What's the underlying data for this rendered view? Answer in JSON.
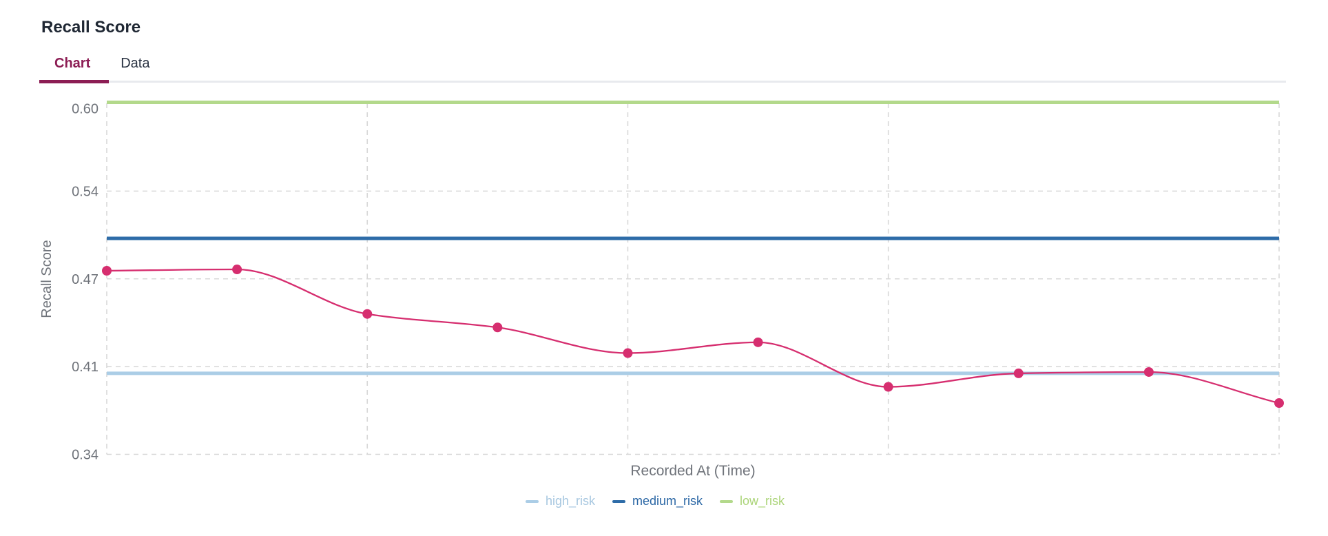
{
  "title": "Recall Score",
  "tabs": [
    {
      "label": "Chart",
      "active": true
    },
    {
      "label": "Data",
      "active": false
    }
  ],
  "colors": {
    "active_tab": "#8c1d54",
    "series_line": "#d62e6f",
    "high_risk_line": "#abcde6",
    "high_risk_text": "#a7c7e0",
    "medium_risk_line": "#2e6ca8",
    "medium_risk_text": "#2b67a5",
    "low_risk_line": "#b3d98b",
    "low_risk_text": "#abd478",
    "gridline": "#d8d8d8",
    "tick_text": "#6f737a",
    "title_text": "#1f2733"
  },
  "chart_data": {
    "type": "line",
    "title": "Recall Score",
    "xlabel": "Recorded At (Time)",
    "ylabel": "Recall Score",
    "series": [
      {
        "name": "recall_score",
        "color": "#d62e6f",
        "values": [
          0.476,
          0.477,
          0.444,
          0.434,
          0.415,
          0.423,
          0.39,
          0.4,
          0.401,
          0.378
        ]
      }
    ],
    "thresholds": [
      {
        "name": "high_risk",
        "value": 0.4,
        "color": "#abcde6",
        "text_color": "#a7c7e0"
      },
      {
        "name": "medium_risk",
        "value": 0.5,
        "color": "#2e6ca8",
        "text_color": "#2b67a5"
      },
      {
        "name": "low_risk",
        "value": 0.6,
        "color": "#b3d98b",
        "text_color": "#abd478"
      }
    ],
    "y_ticks": {
      "values": [
        0.34,
        0.405,
        0.47,
        0.535,
        0.6
      ],
      "labels": [
        "0.34",
        "0.41",
        "0.47",
        "0.54",
        "0.60"
      ]
    },
    "ylim": [
      0.34,
      0.62
    ],
    "x_tick_labels": [],
    "grid": "dashed",
    "legend": [
      "high_risk",
      "medium_risk",
      "low_risk"
    ],
    "legend_position": "bottom"
  }
}
